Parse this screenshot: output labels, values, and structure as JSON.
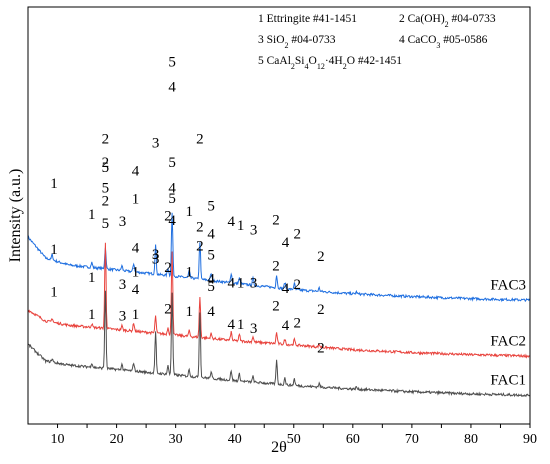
{
  "chart_data": {
    "type": "line",
    "xlabel": "2θ",
    "ylabel": "Intensity (a.u.)",
    "xlim": [
      5,
      90
    ],
    "xticks": [
      10,
      20,
      30,
      40,
      50,
      60,
      70,
      80,
      90
    ],
    "grid": false,
    "legend_position": "top-right",
    "legend": [
      {
        "segments": [
          [
            "1 Ettringite #41-1451",
            ""
          ]
        ]
      },
      {
        "segments": [
          [
            "2 Ca(OH)",
            ""
          ],
          [
            "2",
            "sub"
          ],
          [
            " #04-0733",
            ""
          ]
        ]
      },
      {
        "segments": [
          [
            "3 SiO",
            ""
          ],
          [
            "2",
            "sub"
          ],
          [
            " #04-0733",
            ""
          ]
        ]
      },
      {
        "segments": [
          [
            "4 CaCO",
            ""
          ],
          [
            "3",
            "sub"
          ],
          [
            " #05-0586",
            ""
          ]
        ]
      },
      {
        "segments": [
          [
            "5 CaAl",
            ""
          ],
          [
            "2",
            "sub"
          ],
          [
            "Si",
            ""
          ],
          [
            "4",
            "sub"
          ],
          [
            "O",
            ""
          ],
          [
            "12",
            "sub"
          ],
          [
            "·4H",
            ""
          ],
          [
            "2",
            "sub"
          ],
          [
            "O #42-1451",
            ""
          ]
        ]
      }
    ],
    "series": [
      {
        "name": "FAC3",
        "color": "#1f6fe0",
        "baseline": [
          [
            5,
            0.92
          ],
          [
            8,
            0.62
          ],
          [
            12,
            0.52
          ],
          [
            20,
            0.45
          ],
          [
            30,
            0.36
          ],
          [
            40,
            0.26
          ],
          [
            50,
            0.17
          ],
          [
            60,
            0.11
          ],
          [
            70,
            0.07
          ],
          [
            80,
            0.04
          ],
          [
            90,
            0.02
          ]
        ],
        "peaks": [
          [
            9.1,
            0.08
          ],
          [
            15.8,
            0.07
          ],
          [
            18.1,
            0.3
          ],
          [
            20.9,
            0.07
          ],
          [
            22.9,
            0.12
          ],
          [
            26.6,
            0.42
          ],
          [
            28.7,
            0.11
          ],
          [
            29.4,
            0.9
          ],
          [
            32.3,
            0.1
          ],
          [
            34.1,
            0.54
          ],
          [
            36.0,
            0.1
          ],
          [
            39.4,
            0.14
          ],
          [
            40.8,
            0.08
          ],
          [
            43.1,
            0.1
          ],
          [
            47.1,
            0.18
          ],
          [
            48.5,
            0.09
          ],
          [
            50.1,
            0.09
          ],
          [
            54.3,
            0.05
          ],
          [
            60.6,
            0.03
          ]
        ],
        "labels": [
          {
            "text": "1",
            "x": 9.4,
            "y": 1.62
          },
          {
            "text": "1",
            "x": 15.8,
            "y": 1.18
          },
          {
            "text": "2",
            "x": 18.1,
            "y": 2.26
          },
          {
            "text": "5",
            "x": 18.1,
            "y": 1.85
          },
          {
            "text": "3",
            "x": 21.0,
            "y": 1.08
          },
          {
            "text": "4",
            "x": 23.2,
            "y": 1.8
          },
          {
            "text": "1",
            "x": 23.2,
            "y": 1.4
          },
          {
            "text": "3",
            "x": 26.6,
            "y": 2.2
          },
          {
            "text": "2",
            "x": 28.7,
            "y": 1.16
          },
          {
            "text": "5",
            "x": 29.4,
            "y": 3.36
          },
          {
            "text": "4",
            "x": 29.4,
            "y": 3.0
          },
          {
            "text": "1",
            "x": 32.3,
            "y": 1.22
          },
          {
            "text": "2",
            "x": 34.1,
            "y": 2.26
          },
          {
            "text": "5",
            "x": 36.0,
            "y": 1.3
          },
          {
            "text": "4",
            "x": 36.0,
            "y": 0.9
          },
          {
            "text": "4",
            "x": 39.4,
            "y": 1.08
          },
          {
            "text": "1",
            "x": 41.0,
            "y": 1.02
          },
          {
            "text": "3",
            "x": 43.2,
            "y": 0.96
          },
          {
            "text": "2",
            "x": 47.0,
            "y": 1.1
          },
          {
            "text": "4",
            "x": 48.6,
            "y": 0.78
          },
          {
            "text": "2",
            "x": 50.6,
            "y": 0.9
          },
          {
            "text": "2",
            "x": 54.6,
            "y": 0.58
          }
        ],
        "label_text": "FAC3"
      },
      {
        "name": "FAC2",
        "color": "#e8423c",
        "baseline": [
          [
            5,
            0.68
          ],
          [
            8,
            0.52
          ],
          [
            12,
            0.46
          ],
          [
            20,
            0.4
          ],
          [
            30,
            0.32
          ],
          [
            40,
            0.24
          ],
          [
            50,
            0.18
          ],
          [
            60,
            0.11
          ],
          [
            70,
            0.07
          ],
          [
            80,
            0.04
          ],
          [
            90,
            0.02
          ]
        ],
        "peaks": [
          [
            9.1,
            0.06
          ],
          [
            15.8,
            0.05
          ],
          [
            18.1,
            1.22
          ],
          [
            20.9,
            0.06
          ],
          [
            22.9,
            0.12
          ],
          [
            26.6,
            0.24
          ],
          [
            28.7,
            0.1
          ],
          [
            29.4,
            1.2
          ],
          [
            32.3,
            0.08
          ],
          [
            34.1,
            0.58
          ],
          [
            36.0,
            0.07
          ],
          [
            39.4,
            0.12
          ],
          [
            40.8,
            0.09
          ],
          [
            43.1,
            0.08
          ],
          [
            47.1,
            0.16
          ],
          [
            48.5,
            0.07
          ],
          [
            50.1,
            0.08
          ],
          [
            54.3,
            0.04
          ]
        ],
        "labels": [
          {
            "text": "1",
            "x": 9.4,
            "y": 1.48
          },
          {
            "text": "1",
            "x": 15.8,
            "y": 1.08
          },
          {
            "text": "2",
            "x": 18.1,
            "y": 2.72
          },
          {
            "text": "5",
            "x": 18.1,
            "y": 2.36
          },
          {
            "text": "3",
            "x": 21.0,
            "y": 0.98
          },
          {
            "text": "4",
            "x": 23.2,
            "y": 1.5
          },
          {
            "text": "1",
            "x": 23.2,
            "y": 1.16
          },
          {
            "text": "3",
            "x": 26.6,
            "y": 1.34
          },
          {
            "text": "2",
            "x": 28.7,
            "y": 1.22
          },
          {
            "text": "5",
            "x": 29.4,
            "y": 2.72
          },
          {
            "text": "4",
            "x": 29.4,
            "y": 2.36
          },
          {
            "text": "1",
            "x": 32.3,
            "y": 1.16
          },
          {
            "text": "2",
            "x": 34.1,
            "y": 1.8
          },
          {
            "text": "5",
            "x": 36.0,
            "y": 1.4
          },
          {
            "text": "4",
            "x": 36.0,
            "y": 1.06
          },
          {
            "text": "4",
            "x": 39.4,
            "y": 1.0
          },
          {
            "text": "1",
            "x": 41.0,
            "y": 1.0
          },
          {
            "text": "3",
            "x": 43.2,
            "y": 1.0
          },
          {
            "text": "2",
            "x": 47.0,
            "y": 1.24
          },
          {
            "text": "4",
            "x": 48.6,
            "y": 0.92
          },
          {
            "text": "2",
            "x": 50.6,
            "y": 0.98
          },
          {
            "text": "2",
            "x": 54.6,
            "y": 0.62
          }
        ],
        "label_text": "FAC2"
      },
      {
        "name": "FAC1",
        "color": "#4d4d4d",
        "baseline": [
          [
            5,
            0.74
          ],
          [
            8,
            0.5
          ],
          [
            12,
            0.44
          ],
          [
            20,
            0.38
          ],
          [
            30,
            0.3
          ],
          [
            40,
            0.22
          ],
          [
            50,
            0.15
          ],
          [
            60,
            0.1
          ],
          [
            70,
            0.06
          ],
          [
            80,
            0.03
          ],
          [
            90,
            0.01
          ]
        ],
        "peaks": [
          [
            9.1,
            0.05
          ],
          [
            15.8,
            0.06
          ],
          [
            18.1,
            1.12
          ],
          [
            20.9,
            0.08
          ],
          [
            22.9,
            0.12
          ],
          [
            26.6,
            0.58
          ],
          [
            28.7,
            0.12
          ],
          [
            29.4,
            1.16
          ],
          [
            32.3,
            0.1
          ],
          [
            34.1,
            0.94
          ],
          [
            36.0,
            0.09
          ],
          [
            39.4,
            0.14
          ],
          [
            40.8,
            0.1
          ],
          [
            43.1,
            0.08
          ],
          [
            47.1,
            0.34
          ],
          [
            48.5,
            0.1
          ],
          [
            50.1,
            0.1
          ],
          [
            54.3,
            0.05
          ],
          [
            60.6,
            0.03
          ]
        ],
        "labels": [
          {
            "text": "1",
            "x": 9.4,
            "y": 1.42
          },
          {
            "text": "1",
            "x": 15.8,
            "y": 1.1
          },
          {
            "text": "2",
            "x": 18.1,
            "y": 2.72
          },
          {
            "text": "5",
            "x": 18.1,
            "y": 2.4
          },
          {
            "text": "3",
            "x": 21.0,
            "y": 1.08
          },
          {
            "text": "4",
            "x": 23.2,
            "y": 1.46
          },
          {
            "text": "1",
            "x": 23.2,
            "y": 1.1
          },
          {
            "text": "3",
            "x": 26.6,
            "y": 1.96
          },
          {
            "text": "2",
            "x": 28.7,
            "y": 1.18
          },
          {
            "text": "5",
            "x": 29.4,
            "y": 2.76
          },
          {
            "text": "4",
            "x": 29.4,
            "y": 2.44
          },
          {
            "text": "1",
            "x": 32.3,
            "y": 1.14
          },
          {
            "text": "2",
            "x": 34.1,
            "y": 2.08
          },
          {
            "text": "5",
            "x": 36.0,
            "y": 1.5
          },
          {
            "text": "4",
            "x": 36.0,
            "y": 1.14
          },
          {
            "text": "4",
            "x": 39.4,
            "y": 0.96
          },
          {
            "text": "1",
            "x": 41.0,
            "y": 0.96
          },
          {
            "text": "3",
            "x": 43.2,
            "y": 0.9
          },
          {
            "text": "2",
            "x": 47.0,
            "y": 1.22
          },
          {
            "text": "4",
            "x": 48.6,
            "y": 0.94
          },
          {
            "text": "2",
            "x": 50.6,
            "y": 0.98
          },
          {
            "text": "2",
            "x": 54.6,
            "y": 0.62
          }
        ],
        "label_text": "FAC1"
      }
    ]
  }
}
